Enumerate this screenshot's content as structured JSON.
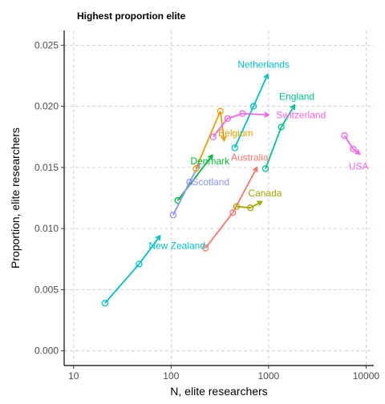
{
  "chart_data": {
    "type": "line",
    "title": "Highest proportion elite",
    "xlabel": "N, elite researchers",
    "ylabel": "Proportion, elite researchers",
    "xscale": "log10",
    "xlim": [
      8,
      12000
    ],
    "ylim": [
      -0.0012,
      0.0262
    ],
    "x_ticks": [
      10,
      100,
      1000,
      10000
    ],
    "x_tick_labels": [
      "10",
      "100",
      "1000",
      "10000"
    ],
    "y_ticks": [
      0.0,
      0.005,
      0.01,
      0.015,
      0.02,
      0.025
    ],
    "y_tick_labels": [
      "0.000",
      "0.005",
      "0.010",
      "0.015",
      "0.020",
      "0.025"
    ],
    "grid": true,
    "legend": "none",
    "series": [
      {
        "name": "New Zealand",
        "color": "#00BFC4",
        "x": [
          21,
          47,
          77
        ],
        "y": [
          0.0039,
          0.0071,
          0.0094
        ],
        "label_at": [
          115,
          0.0086
        ]
      },
      {
        "name": "Denmark",
        "color": "#00BA38",
        "x": [
          117,
          265
        ],
        "y": [
          0.0123,
          0.016
        ],
        "label_at": [
          250,
          0.0155
        ]
      },
      {
        "name": "Scotland",
        "color": "#8B93FF",
        "x": [
          105,
          155,
          195
        ],
        "y": [
          0.0111,
          0.0138,
          0.0153
        ],
        "label_at": [
          255,
          0.0138
        ]
      },
      {
        "name": "Belgium",
        "color": "#E69F00",
        "x": [
          180,
          320,
          350
        ],
        "y": [
          0.0149,
          0.0196,
          0.0172
        ],
        "label_at": [
          460,
          0.0178
        ]
      },
      {
        "name": "Netherlands",
        "color": "#00BFC4",
        "x": [
          450,
          700,
          980
        ],
        "y": [
          0.0166,
          0.02,
          0.0226
        ],
        "label_at": [
          890,
          0.0234
        ]
      },
      {
        "name": "England",
        "color": "#00C08B",
        "x": [
          930,
          1350,
          1850
        ],
        "y": [
          0.0149,
          0.0183,
          0.0201
        ],
        "label_at": [
          1950,
          0.0208
        ]
      },
      {
        "name": "Switzerland",
        "color": "#F564E3",
        "x": [
          270,
          380,
          540,
          1000
        ],
        "y": [
          0.0175,
          0.019,
          0.0194,
          0.0193
        ],
        "label_at": [
          2150,
          0.0193
        ]
      },
      {
        "name": "Australia",
        "color": "#F8766D",
        "x": [
          225,
          430,
          760
        ],
        "y": [
          0.0084,
          0.0113,
          0.015
        ],
        "label_at": [
          640,
          0.0158
        ]
      },
      {
        "name": "Canada",
        "color": "#A3A500",
        "x": [
          470,
          650,
          850
        ],
        "y": [
          0.0118,
          0.0117,
          0.0122
        ],
        "label_at": [
          920,
          0.0129
        ]
      },
      {
        "name": "USA",
        "color": "#F564E3",
        "x": [
          6000,
          7400,
          8600
        ],
        "y": [
          0.0176,
          0.0165,
          0.0161
        ],
        "label_at": [
          8400,
          0.0151
        ]
      }
    ]
  }
}
